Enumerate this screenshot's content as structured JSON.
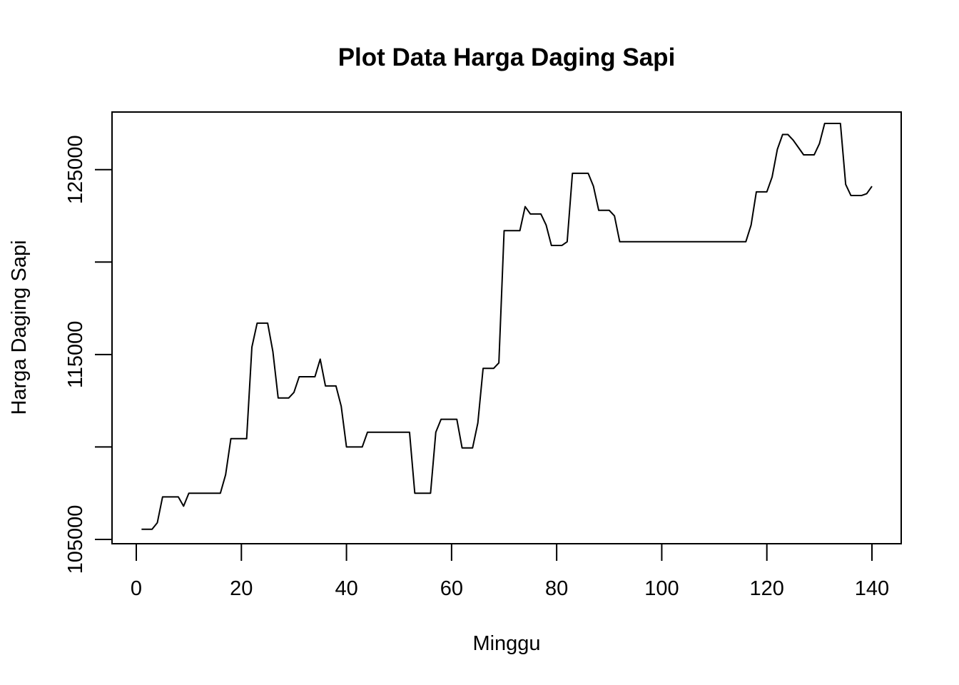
{
  "chart_data": {
    "type": "line",
    "title": "Plot Data Harga Daging Sapi",
    "xlabel": "Minggu",
    "ylabel": "Harga Daging Sapi",
    "xlim": [
      0,
      140
    ],
    "ylim": [
      105000,
      128000
    ],
    "x_ticks": [
      0,
      20,
      40,
      60,
      80,
      100,
      120,
      140
    ],
    "x_tick_labels": [
      "0",
      "20",
      "40",
      "60",
      "80",
      "100",
      "120",
      "140"
    ],
    "y_ticks": [
      105000,
      110000,
      115000,
      120000,
      125000
    ],
    "y_tick_labels": [
      "105000",
      "",
      "115000",
      "",
      "125000"
    ],
    "grid": false,
    "legend": "none",
    "line_color": "#000000",
    "series": [
      {
        "values": [
          105550,
          105550,
          105550,
          105900,
          107300,
          107300,
          107300,
          107300,
          106800,
          107500,
          107500,
          107500,
          107500,
          107500,
          107500,
          107500,
          108500,
          110450,
          110450,
          110450,
          110450,
          115400,
          116700,
          116700,
          116700,
          115150,
          112650,
          112650,
          112650,
          112950,
          113800,
          113800,
          113800,
          113800,
          114750,
          113300,
          113300,
          113300,
          112200,
          110000,
          110000,
          110000,
          110000,
          110800,
          110800,
          110800,
          110800,
          110800,
          110800,
          110800,
          110800,
          110800,
          107500,
          107500,
          107500,
          107500,
          110800,
          111500,
          111500,
          111500,
          111500,
          109950,
          109950,
          109950,
          111300,
          114250,
          114250,
          114250,
          114550,
          121700,
          121700,
          121700,
          121700,
          123000,
          122600,
          122600,
          122600,
          122000,
          120900,
          120900,
          120900,
          121100,
          124800,
          124800,
          124800,
          124800,
          124100,
          122800,
          122800,
          122800,
          122500,
          121100,
          121100,
          121100,
          121100,
          121100,
          121100,
          121100,
          121100,
          121100,
          121100,
          121100,
          121100,
          121100,
          121100,
          121100,
          121100,
          121100,
          121100,
          121100,
          121100,
          121100,
          121100,
          121100,
          121100,
          121100,
          122000,
          123800,
          123800,
          123800,
          124600,
          126100,
          126900,
          126900,
          126600,
          126200,
          125800,
          125800,
          125800,
          126400,
          127500,
          127500,
          127500,
          127500,
          124200,
          123600,
          123600,
          123600,
          123700,
          124100
        ]
      }
    ]
  }
}
